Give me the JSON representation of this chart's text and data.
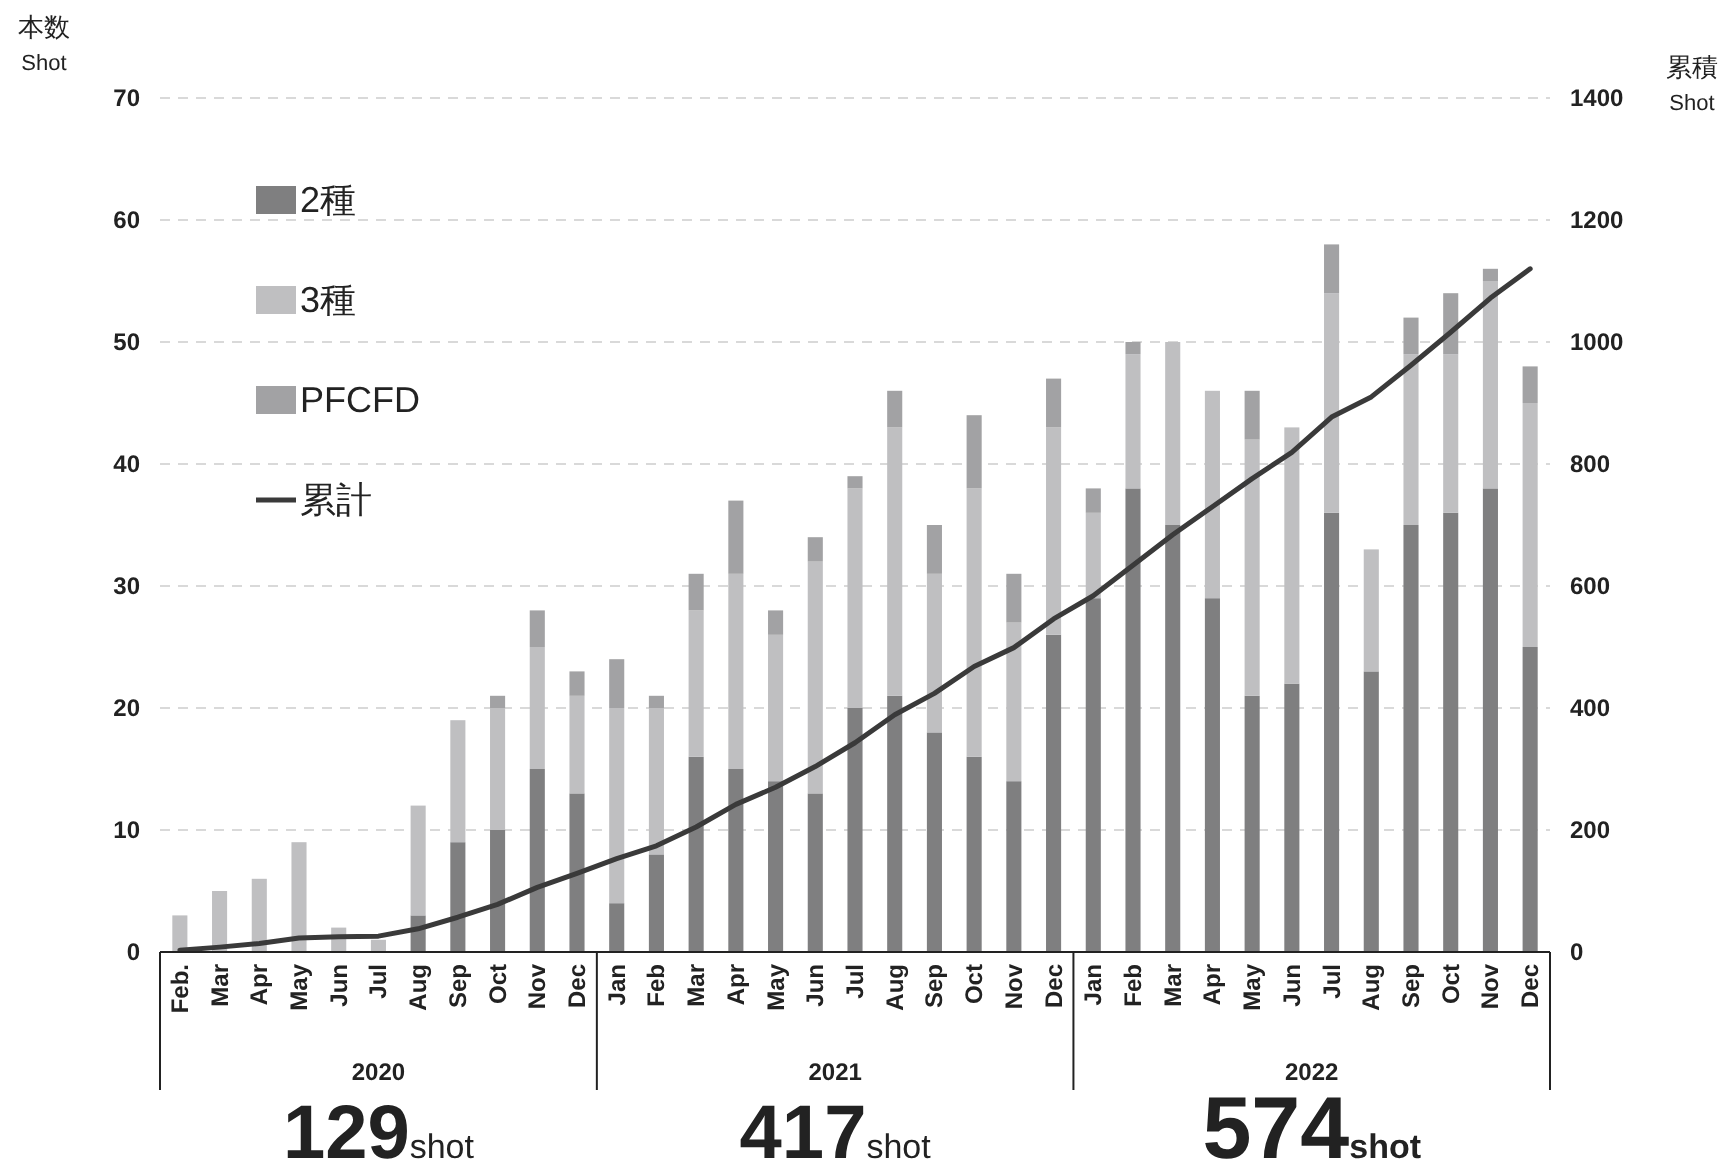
{
  "chart_data": {
    "type": "bar",
    "stacked": true,
    "ylabel": "本数\nShot",
    "y2label": "累積\nShot",
    "categories": [
      "Feb.",
      "Mar",
      "Apr",
      "May",
      "Jun",
      "Jul",
      "Aug",
      "Sep",
      "Oct",
      "Nov",
      "Dec",
      "Jan",
      "Feb",
      "Mar",
      "Apr",
      "May",
      "Jun",
      "Jul",
      "Aug",
      "Sep",
      "Oct",
      "Nov",
      "Dec",
      "Jan",
      "Feb",
      "Mar",
      "Apr",
      "May",
      "Jun",
      "Jul",
      "Aug",
      "Sep",
      "Oct",
      "Nov",
      "Dec"
    ],
    "series": [
      {
        "name": "2種",
        "color": "#7f7f80",
        "values": [
          0,
          0,
          0,
          0,
          0,
          0,
          3,
          9,
          10,
          15,
          13,
          4,
          8,
          16,
          15,
          14,
          13,
          20,
          21,
          18,
          16,
          14,
          26,
          29,
          38,
          35,
          29,
          21,
          22,
          36,
          23,
          35,
          36,
          38,
          25
        ]
      },
      {
        "name": "3種",
        "color": "#bfbfc1",
        "values": [
          3,
          5,
          6,
          9,
          2,
          1,
          9,
          10,
          10,
          10,
          8,
          16,
          12,
          12,
          16,
          12,
          19,
          18,
          22,
          13,
          22,
          13,
          17,
          7,
          11,
          15,
          17,
          21,
          21,
          18,
          10,
          14,
          13,
          17,
          20
        ]
      },
      {
        "name": "PFCFD",
        "color": "#a2a2a4",
        "values": [
          0,
          0,
          0,
          0,
          0,
          0,
          0,
          0,
          1,
          3,
          2,
          4,
          1,
          3,
          6,
          2,
          2,
          1,
          3,
          4,
          6,
          4,
          4,
          2,
          1,
          0,
          0,
          4,
          0,
          4,
          0,
          3,
          5,
          1,
          3
        ]
      },
      {
        "name": "累計",
        "type": "line",
        "axis": "y2",
        "color": "#3a3a3a",
        "values": [
          3,
          8,
          14,
          23,
          25,
          26,
          38,
          57,
          78,
          106,
          129,
          153,
          174,
          205,
          242,
          270,
          304,
          343,
          389,
          424,
          468,
          499,
          546,
          584,
          634,
          684,
          730,
          776,
          819,
          877,
          910,
          962,
          1016,
          1072,
          1120
        ]
      }
    ],
    "ylim": [
      0,
      70
    ],
    "yticks": [
      0,
      10,
      20,
      30,
      40,
      50,
      60,
      70
    ],
    "y2lim": [
      0,
      1400
    ],
    "y2ticks": [
      0,
      200,
      400,
      600,
      800,
      1000,
      1200,
      1400
    ],
    "grid": "y",
    "legend": "top left",
    "line_style": "solid",
    "marker": "none",
    "annotations": [
      "2020",
      "2021",
      "2022",
      "129shot",
      "417shot",
      "574shot"
    ]
  }
}
